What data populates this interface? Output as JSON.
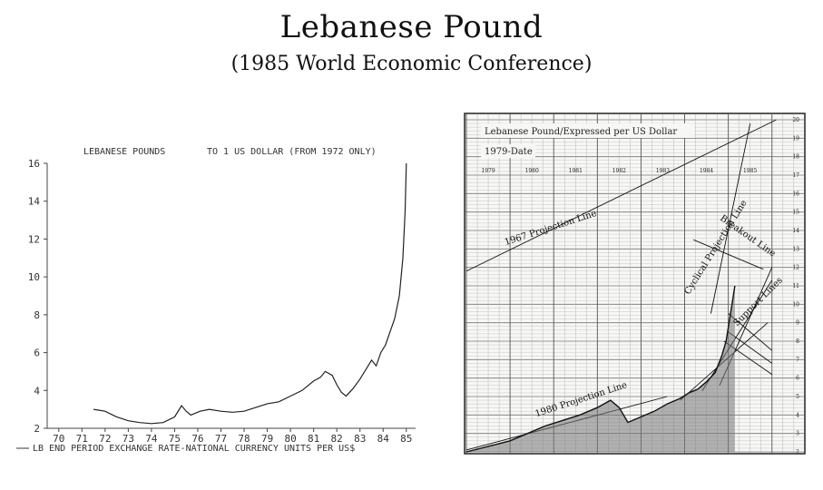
{
  "page": {
    "title": "Lebanese Pound",
    "subtitle": "(1985 World Economic Conference)"
  },
  "chart_data": [
    {
      "type": "line",
      "title": "LEBANESE POUNDS",
      "subtitle": "TO 1 US DOLLAR (FROM 1972 ONLY)",
      "legend": "LB END PERIOD EXCHANGE RATE-NATIONAL CURRENCY UNITS PER US$",
      "x_tick_labels": [
        "70",
        "71",
        "72",
        "73",
        "74",
        "75",
        "76",
        "77",
        "78",
        "79",
        "80",
        "81",
        "82",
        "83",
        "84",
        "85"
      ],
      "y_tick_labels": [
        "2",
        "4",
        "6",
        "8",
        "10",
        "12",
        "14",
        "16"
      ],
      "xlim": [
        1970,
        1985.9
      ],
      "ylim": [
        2,
        16
      ],
      "grid": false,
      "x": [
        1972.0,
        1972.5,
        1973.0,
        1973.5,
        1974.0,
        1974.5,
        1975.0,
        1975.5,
        1975.8,
        1976.0,
        1976.2,
        1976.6,
        1977.0,
        1977.5,
        1978.0,
        1978.5,
        1979.0,
        1979.5,
        1980.0,
        1980.5,
        1981.0,
        1981.5,
        1981.8,
        1982.0,
        1982.3,
        1982.5,
        1982.7,
        1982.9,
        1983.2,
        1983.5,
        1983.8,
        1984.0,
        1984.2,
        1984.4,
        1984.6,
        1984.8,
        1985.0,
        1985.2,
        1985.35,
        1985.45,
        1985.5
      ],
      "y": [
        3.0,
        2.9,
        2.6,
        2.4,
        2.3,
        2.25,
        2.3,
        2.6,
        3.2,
        2.9,
        2.7,
        2.9,
        3.0,
        2.9,
        2.85,
        2.9,
        3.1,
        3.3,
        3.4,
        3.7,
        4.0,
        4.5,
        4.7,
        5.0,
        4.8,
        4.3,
        3.9,
        3.7,
        4.1,
        4.6,
        5.2,
        5.6,
        5.3,
        6.0,
        6.4,
        7.1,
        7.8,
        9.0,
        11.0,
        13.5,
        16.0
      ]
    },
    {
      "type": "line",
      "title": "Lebanese Pound/Expressed per US Dollar",
      "subtitle": "1979-Date",
      "x_tick_labels": [
        "1979",
        "1980",
        "1981",
        "1982",
        "1983",
        "1984",
        "1985"
      ],
      "y_tick_labels": [
        "2",
        "3",
        "4",
        "5",
        "6",
        "7",
        "8",
        "9",
        "10",
        "11",
        "12",
        "13",
        "14",
        "15",
        "16",
        "17",
        "18",
        "19",
        "20"
      ],
      "xlim": [
        1979,
        1986.4
      ],
      "ylim": [
        2,
        20
      ],
      "grid": true,
      "annotations": [
        "1967 Projection Line",
        "Cyclical Projection Line",
        "Breakout Line",
        "Support Lines",
        "1980 Projection Line"
      ],
      "x": [
        1979.0,
        1979.5,
        1980.0,
        1980.4,
        1980.8,
        1981.2,
        1981.6,
        1982.0,
        1982.3,
        1982.5,
        1982.7,
        1983.0,
        1983.3,
        1983.6,
        1983.9,
        1984.1,
        1984.3,
        1984.5,
        1984.7,
        1984.85,
        1984.95,
        1985.05,
        1985.15
      ],
      "y": [
        2.0,
        2.3,
        2.6,
        3.0,
        3.4,
        3.7,
        4.0,
        4.4,
        4.8,
        4.4,
        3.6,
        3.9,
        4.2,
        4.6,
        4.9,
        5.2,
        5.4,
        5.8,
        6.3,
        7.2,
        8.0,
        9.5,
        11.0
      ]
    }
  ]
}
